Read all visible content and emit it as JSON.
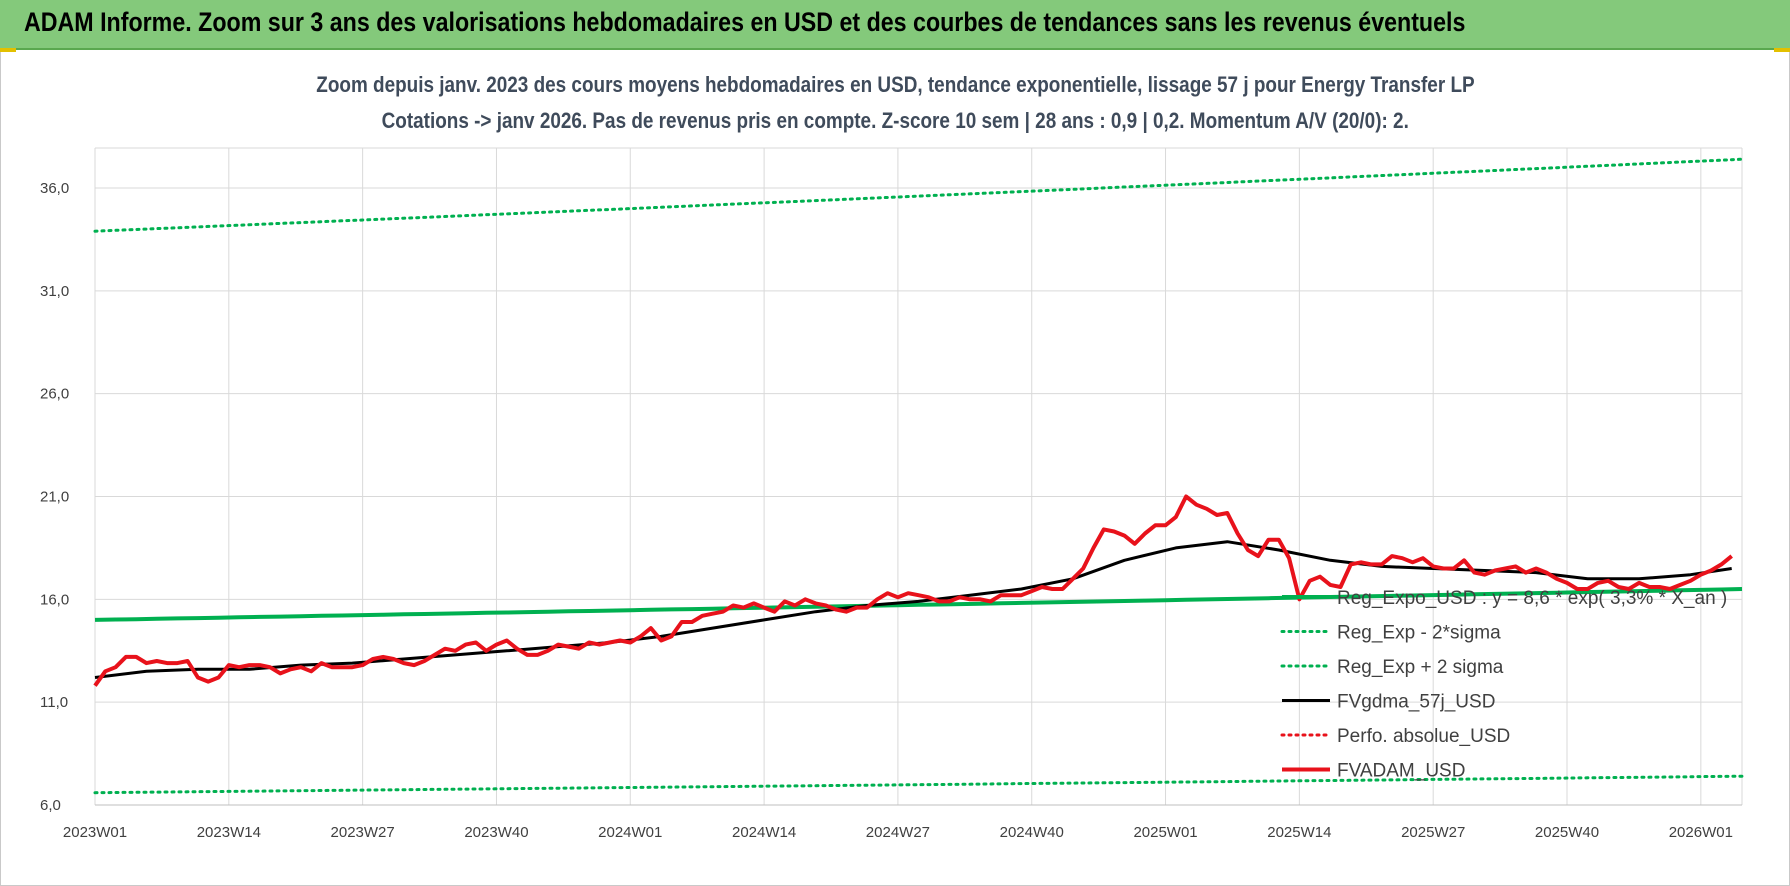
{
  "header": {
    "title": "ADAM Informe. Zoom sur 3 ans des valorisations hebdomadaires en USD et des courbes de tendances sans les revenus éventuels"
  },
  "colors": {
    "header_bg": "#84c97b",
    "fvadam": "#e8121b",
    "fvgdma": "#000000",
    "regexp": "#00b050",
    "perfo": "#e8121b"
  },
  "chart_data": {
    "type": "line",
    "title": "Zoom depuis janv. 2023 des cours moyens hebdomadaires en USD, tendance exponentielle, lissage 57 j pour Energy Transfer LP",
    "subtitle": "Cotations -> janv 2026. Pas de revenus pris en compte. Z-score 10 sem | 28 ans : 0,9 | 0,2. Momentum A/V (20/0): 2.",
    "xlabel": "",
    "ylabel": "",
    "ylim": [
      6,
      36
    ],
    "y_ticks": [
      "6,0",
      "11,0",
      "16,0",
      "21,0",
      "26,0",
      "31,0",
      "36,0"
    ],
    "x_ticks": [
      "2023W01",
      "2023W14",
      "2023W27",
      "2023W40",
      "2024W01",
      "2024W14",
      "2024W27",
      "2024W40",
      "2025W01",
      "2025W14",
      "2025W27",
      "2025W40",
      "2026W01"
    ],
    "x_range_weeks": [
      0,
      160
    ],
    "grid": true,
    "legend_position": "bottom-right",
    "series": [
      {
        "name": "Reg_Expo_USD : y = 8,6 * exp( 3,3% * X_an )",
        "style": "solid-thick",
        "color": "#00b050",
        "points": [
          [
            0,
            15.0
          ],
          [
            160,
            16.5
          ]
        ]
      },
      {
        "name": "Reg_Exp - 2*sigma",
        "style": "dotted",
        "color": "#00b050",
        "points": [
          [
            0,
            6.6
          ],
          [
            160,
            7.4
          ]
        ]
      },
      {
        "name": "Reg_Exp + 2 sigma",
        "style": "dotted",
        "color": "#00b050",
        "points": [
          [
            0,
            33.9
          ],
          [
            160,
            37.4
          ]
        ]
      },
      {
        "name": "FVgdma_57j_USD",
        "style": "solid",
        "color": "#000000",
        "points": [
          [
            0,
            12.2
          ],
          [
            5,
            12.5
          ],
          [
            10,
            12.6
          ],
          [
            15,
            12.6
          ],
          [
            20,
            12.8
          ],
          [
            25,
            12.9
          ],
          [
            30,
            13.1
          ],
          [
            35,
            13.3
          ],
          [
            40,
            13.5
          ],
          [
            45,
            13.7
          ],
          [
            50,
            13.9
          ],
          [
            55,
            14.2
          ],
          [
            60,
            14.6
          ],
          [
            65,
            15.0
          ],
          [
            70,
            15.4
          ],
          [
            75,
            15.7
          ],
          [
            80,
            15.9
          ],
          [
            85,
            16.2
          ],
          [
            90,
            16.5
          ],
          [
            95,
            17.0
          ],
          [
            100,
            17.9
          ],
          [
            105,
            18.5
          ],
          [
            110,
            18.8
          ],
          [
            115,
            18.4
          ],
          [
            120,
            17.9
          ],
          [
            125,
            17.6
          ],
          [
            130,
            17.5
          ],
          [
            135,
            17.4
          ],
          [
            140,
            17.3
          ],
          [
            145,
            17.0
          ],
          [
            150,
            17.0
          ],
          [
            155,
            17.2
          ],
          [
            159,
            17.5
          ]
        ]
      },
      {
        "name": "Perfo. absolue_USD",
        "style": "dotted",
        "color": "#e8121b",
        "points": []
      },
      {
        "name": "FVADAM_USD",
        "style": "solid-thick",
        "color": "#e8121b",
        "points": [
          [
            0,
            11.8
          ],
          [
            1,
            12.5
          ],
          [
            2,
            12.7
          ],
          [
            3,
            13.2
          ],
          [
            4,
            13.2
          ],
          [
            5,
            12.9
          ],
          [
            6,
            13.0
          ],
          [
            7,
            12.9
          ],
          [
            8,
            12.9
          ],
          [
            9,
            13.0
          ],
          [
            10,
            12.2
          ],
          [
            11,
            12.0
          ],
          [
            12,
            12.2
          ],
          [
            13,
            12.8
          ],
          [
            14,
            12.7
          ],
          [
            15,
            12.8
          ],
          [
            16,
            12.8
          ],
          [
            17,
            12.7
          ],
          [
            18,
            12.4
          ],
          [
            19,
            12.6
          ],
          [
            20,
            12.7
          ],
          [
            21,
            12.5
          ],
          [
            22,
            12.9
          ],
          [
            23,
            12.7
          ],
          [
            24,
            12.7
          ],
          [
            25,
            12.7
          ],
          [
            26,
            12.8
          ],
          [
            27,
            13.1
          ],
          [
            28,
            13.2
          ],
          [
            29,
            13.1
          ],
          [
            30,
            12.9
          ],
          [
            31,
            12.8
          ],
          [
            32,
            13.0
          ],
          [
            33,
            13.3
          ],
          [
            34,
            13.6
          ],
          [
            35,
            13.5
          ],
          [
            36,
            13.8
          ],
          [
            37,
            13.9
          ],
          [
            38,
            13.5
          ],
          [
            39,
            13.8
          ],
          [
            40,
            14.0
          ],
          [
            41,
            13.6
          ],
          [
            42,
            13.3
          ],
          [
            43,
            13.3
          ],
          [
            44,
            13.5
          ],
          [
            45,
            13.8
          ],
          [
            46,
            13.7
          ],
          [
            47,
            13.6
          ],
          [
            48,
            13.9
          ],
          [
            49,
            13.8
          ],
          [
            50,
            13.9
          ],
          [
            51,
            14.0
          ],
          [
            52,
            13.9
          ],
          [
            53,
            14.2
          ],
          [
            54,
            14.6
          ],
          [
            55,
            14.0
          ],
          [
            56,
            14.2
          ],
          [
            57,
            14.9
          ],
          [
            58,
            14.9
          ],
          [
            59,
            15.2
          ],
          [
            60,
            15.3
          ],
          [
            61,
            15.4
          ],
          [
            62,
            15.7
          ],
          [
            63,
            15.6
          ],
          [
            64,
            15.8
          ],
          [
            65,
            15.6
          ],
          [
            66,
            15.4
          ],
          [
            67,
            15.9
          ],
          [
            68,
            15.7
          ],
          [
            69,
            16.0
          ],
          [
            70,
            15.8
          ],
          [
            71,
            15.7
          ],
          [
            72,
            15.5
          ],
          [
            73,
            15.4
          ],
          [
            74,
            15.6
          ],
          [
            75,
            15.6
          ],
          [
            76,
            16.0
          ],
          [
            77,
            16.3
          ],
          [
            78,
            16.1
          ],
          [
            79,
            16.3
          ],
          [
            80,
            16.2
          ],
          [
            81,
            16.1
          ],
          [
            82,
            15.9
          ],
          [
            83,
            15.9
          ],
          [
            84,
            16.1
          ],
          [
            85,
            16.0
          ],
          [
            86,
            16.0
          ],
          [
            87,
            15.9
          ],
          [
            88,
            16.2
          ],
          [
            89,
            16.2
          ],
          [
            90,
            16.2
          ],
          [
            91,
            16.4
          ],
          [
            92,
            16.6
          ],
          [
            93,
            16.5
          ],
          [
            94,
            16.5
          ],
          [
            95,
            17.0
          ],
          [
            96,
            17.5
          ],
          [
            97,
            18.5
          ],
          [
            98,
            19.4
          ],
          [
            99,
            19.3
          ],
          [
            100,
            19.1
          ],
          [
            101,
            18.7
          ],
          [
            102,
            19.2
          ],
          [
            103,
            19.6
          ],
          [
            104,
            19.6
          ],
          [
            105,
            20.0
          ],
          [
            106,
            21.0
          ],
          [
            107,
            20.6
          ],
          [
            108,
            20.4
          ],
          [
            109,
            20.1
          ],
          [
            110,
            20.2
          ],
          [
            111,
            19.2
          ],
          [
            112,
            18.4
          ],
          [
            113,
            18.1
          ],
          [
            114,
            18.9
          ],
          [
            115,
            18.9
          ],
          [
            116,
            18.0
          ],
          [
            117,
            16.0
          ],
          [
            118,
            16.9
          ],
          [
            119,
            17.1
          ],
          [
            120,
            16.7
          ],
          [
            121,
            16.6
          ],
          [
            122,
            17.7
          ],
          [
            123,
            17.8
          ],
          [
            124,
            17.7
          ],
          [
            125,
            17.7
          ],
          [
            126,
            18.1
          ],
          [
            127,
            18.0
          ],
          [
            128,
            17.8
          ],
          [
            129,
            18.0
          ],
          [
            130,
            17.6
          ],
          [
            131,
            17.5
          ],
          [
            132,
            17.5
          ],
          [
            133,
            17.9
          ],
          [
            134,
            17.3
          ],
          [
            135,
            17.2
          ],
          [
            136,
            17.4
          ],
          [
            137,
            17.5
          ],
          [
            138,
            17.6
          ],
          [
            139,
            17.3
          ],
          [
            140,
            17.5
          ],
          [
            141,
            17.3
          ],
          [
            142,
            17.0
          ],
          [
            143,
            16.8
          ],
          [
            144,
            16.5
          ],
          [
            145,
            16.5
          ],
          [
            146,
            16.8
          ],
          [
            147,
            16.9
          ],
          [
            148,
            16.6
          ],
          [
            149,
            16.5
          ],
          [
            150,
            16.8
          ],
          [
            151,
            16.6
          ],
          [
            152,
            16.6
          ],
          [
            153,
            16.5
          ],
          [
            154,
            16.7
          ],
          [
            155,
            16.9
          ],
          [
            156,
            17.2
          ],
          [
            157,
            17.4
          ],
          [
            158,
            17.7
          ],
          [
            159,
            18.1
          ]
        ]
      }
    ]
  }
}
